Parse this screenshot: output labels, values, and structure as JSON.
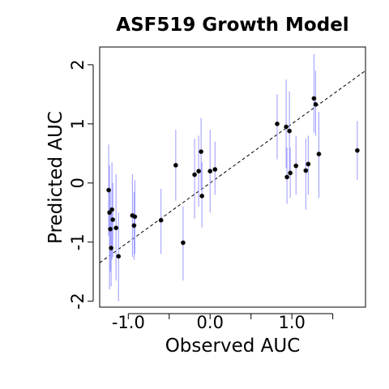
{
  "chart_data": {
    "type": "scatter",
    "title": "ASF519 Growth Model",
    "xlabel": "Observed AUC",
    "ylabel": "Predicted AUC",
    "xlim": [
      -1.35,
      1.9
    ],
    "ylim": [
      -2.1,
      2.3
    ],
    "x_ticks": [
      -1.0,
      -0.5,
      0.0,
      0.5,
      1.0,
      1.5
    ],
    "x_tick_labels": [
      "-1.0",
      "",
      "0.0",
      "",
      "1.0",
      ""
    ],
    "y_ticks": [
      -2,
      -1,
      0,
      1,
      2
    ],
    "y_tick_labels": [
      "-2",
      "-1",
      "0",
      "1",
      "2"
    ],
    "reference_line": {
      "slope": 1,
      "intercept": 0,
      "style": "dashed"
    },
    "point_color": "#000000",
    "errorbar_color": "#9999ff",
    "grid": false,
    "points": [
      {
        "x": -1.24,
        "y": -0.12,
        "lo": -0.9,
        "hi": 0.65
      },
      {
        "x": -1.23,
        "y": -0.5,
        "lo": -1.8,
        "hi": 0.3
      },
      {
        "x": -1.22,
        "y": -0.78,
        "lo": -1.5,
        "hi": -0.1
      },
      {
        "x": -1.21,
        "y": -1.1,
        "lo": -1.75,
        "hi": -0.45
      },
      {
        "x": -1.2,
        "y": -0.45,
        "lo": -1.3,
        "hi": 0.35
      },
      {
        "x": -1.19,
        "y": -0.62,
        "lo": -1.25,
        "hi": 0.0
      },
      {
        "x": -1.15,
        "y": -0.76,
        "lo": -1.65,
        "hi": 0.15
      },
      {
        "x": -1.12,
        "y": -1.24,
        "lo": -2.0,
        "hi": -0.5
      },
      {
        "x": -0.95,
        "y": -0.55,
        "lo": -1.25,
        "hi": 0.15
      },
      {
        "x": -0.93,
        "y": -0.72,
        "lo": -1.3,
        "hi": -0.15
      },
      {
        "x": -0.92,
        "y": -0.57,
        "lo": -1.2,
        "hi": 0.05
      },
      {
        "x": -0.6,
        "y": -0.63,
        "lo": -1.2,
        "hi": -0.1
      },
      {
        "x": -0.33,
        "y": -1.01,
        "lo": -1.65,
        "hi": -0.4
      },
      {
        "x": -0.42,
        "y": 0.3,
        "lo": -0.3,
        "hi": 0.9
      },
      {
        "x": -0.19,
        "y": 0.14,
        "lo": -0.6,
        "hi": 0.75
      },
      {
        "x": -0.14,
        "y": 0.2,
        "lo": -0.4,
        "hi": 0.8
      },
      {
        "x": -0.11,
        "y": 0.53,
        "lo": -0.1,
        "hi": 1.1
      },
      {
        "x": -0.1,
        "y": -0.22,
        "lo": -0.75,
        "hi": 0.35
      },
      {
        "x": 0.0,
        "y": 0.2,
        "lo": -0.5,
        "hi": 0.9
      },
      {
        "x": 0.06,
        "y": 0.23,
        "lo": -0.2,
        "hi": 0.7
      },
      {
        "x": 0.82,
        "y": 1.0,
        "lo": 0.4,
        "hi": 1.5
      },
      {
        "x": 0.93,
        "y": 0.95,
        "lo": 0.25,
        "hi": 1.75
      },
      {
        "x": 0.94,
        "y": 0.1,
        "lo": -0.35,
        "hi": 0.6
      },
      {
        "x": 0.97,
        "y": 0.88,
        "lo": 0.2,
        "hi": 1.55
      },
      {
        "x": 0.98,
        "y": 0.17,
        "lo": -0.25,
        "hi": 0.6
      },
      {
        "x": 1.05,
        "y": 0.29,
        "lo": -0.2,
        "hi": 0.8
      },
      {
        "x": 1.17,
        "y": 0.21,
        "lo": -0.45,
        "hi": 0.75
      },
      {
        "x": 1.2,
        "y": 0.32,
        "lo": -0.2,
        "hi": 0.8
      },
      {
        "x": 1.27,
        "y": 1.43,
        "lo": 0.85,
        "hi": 2.18
      },
      {
        "x": 1.29,
        "y": 1.33,
        "lo": 0.8,
        "hi": 1.9
      },
      {
        "x": 1.33,
        "y": 0.49,
        "lo": -0.25,
        "hi": 1.2
      },
      {
        "x": 1.8,
        "y": 0.55,
        "lo": 0.05,
        "hi": 1.05
      }
    ]
  }
}
